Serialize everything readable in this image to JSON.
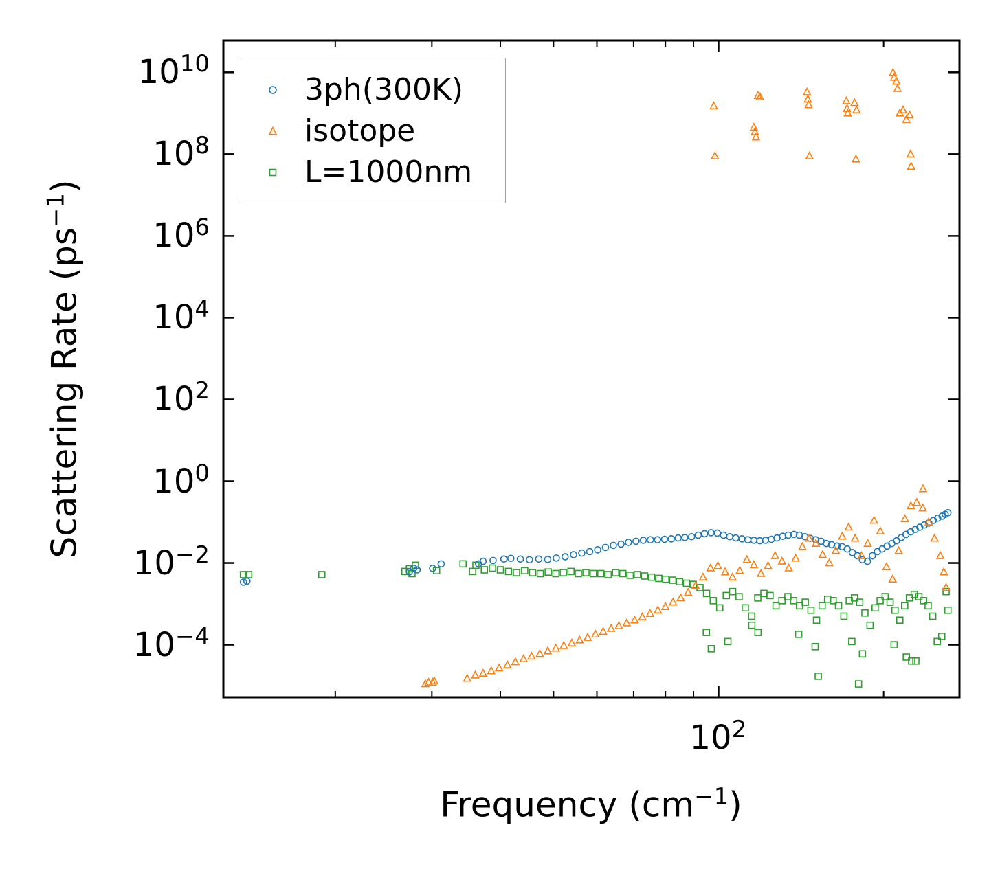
{
  "chart_data": {
    "type": "scatter",
    "title": "",
    "xlabel": "Frequency (cm",
    "xlabel_sup": "−1",
    "xlabel_end": ")",
    "ylabel": "Scattering Rate (ps",
    "ylabel_sup": "−1",
    "ylabel_end": ")",
    "xscale": "log",
    "yscale": "log",
    "xlim": [
      12.5,
      275
    ],
    "ylim": [
      5.2e-06,
      60000000000
    ],
    "x_ticks": [
      {
        "value": 100,
        "base": "10",
        "exp": "2"
      }
    ],
    "y_ticks": [
      {
        "value": 10000000000,
        "base": "10",
        "exp": "10"
      },
      {
        "value": 100000000,
        "base": "10",
        "exp": "8"
      },
      {
        "value": 1000000,
        "base": "10",
        "exp": "6"
      },
      {
        "value": 10000,
        "base": "10",
        "exp": "4"
      },
      {
        "value": 100,
        "base": "10",
        "exp": "2"
      },
      {
        "value": 1,
        "base": "10",
        "exp": "0"
      },
      {
        "value": 0.01,
        "base": "10",
        "exp": "−2"
      },
      {
        "value": 0.0001,
        "base": "10",
        "exp": "−4"
      }
    ],
    "legend_position": "upper-left",
    "series": [
      {
        "name": "3ph(300K)",
        "marker": "circle",
        "color": "#1f77b4",
        "x": [
          13.6,
          13.8,
          27.3,
          27.8,
          28.2,
          30.1,
          31.2,
          36.5,
          37.2,
          38.8,
          40.6,
          41.8,
          43.5,
          45.2,
          47.0,
          48.8,
          50.6,
          52.5,
          54.4,
          56.3,
          58.2,
          60.2,
          62.2,
          64.3,
          66.4,
          68.5,
          70.7,
          72.9,
          75.1,
          77.4,
          79.7,
          82.0,
          84.4,
          86.8,
          89.3,
          91.8,
          94.3,
          96.9,
          99.5,
          102.1,
          104.8,
          107.5,
          110.3,
          113.1,
          116.0,
          118.9,
          121.8,
          124.8,
          127.8,
          130.9,
          134.0,
          137.2,
          140.4,
          143.7,
          147.0,
          150.4,
          153.8,
          157.3,
          160.8,
          164.4,
          168.0,
          171.7,
          175.4,
          179.2,
          183.0,
          186.9,
          190.8,
          194.8,
          198.8,
          202.9,
          207.0,
          211.2,
          215.4,
          219.7,
          224.0,
          228.4,
          232.8,
          237.3,
          241.8,
          246.4,
          251.0,
          255.7,
          259.0,
          262.0
        ],
        "y": [
          0.0034,
          0.0036,
          0.0061,
          0.0074,
          0.0068,
          0.0074,
          0.0095,
          0.0095,
          0.011,
          0.0115,
          0.0125,
          0.013,
          0.0125,
          0.012,
          0.0125,
          0.0122,
          0.0132,
          0.0142,
          0.016,
          0.0175,
          0.019,
          0.021,
          0.024,
          0.027,
          0.029,
          0.032,
          0.034,
          0.036,
          0.037,
          0.037,
          0.038,
          0.039,
          0.041,
          0.042,
          0.044,
          0.048,
          0.052,
          0.055,
          0.054,
          0.048,
          0.044,
          0.041,
          0.039,
          0.037,
          0.036,
          0.035,
          0.036,
          0.038,
          0.041,
          0.045,
          0.048,
          0.05,
          0.048,
          0.044,
          0.04,
          0.037,
          0.034,
          0.03,
          0.028,
          0.026,
          0.025,
          0.022,
          0.018,
          0.015,
          0.012,
          0.011,
          0.015,
          0.019,
          0.022,
          0.026,
          0.03,
          0.035,
          0.042,
          0.05,
          0.058,
          0.066,
          0.075,
          0.085,
          0.095,
          0.11,
          0.125,
          0.14,
          0.155,
          0.17
        ]
      },
      {
        "name": "isotope",
        "marker": "triangle",
        "color": "#ff7f0e",
        "x": [
          29.2,
          29.6,
          30.1,
          30.3,
          34.8,
          36.0,
          37.2,
          38.5,
          39.8,
          41.2,
          42.6,
          44.1,
          45.6,
          47.2,
          48.8,
          50.5,
          52.2,
          54.0,
          55.8,
          57.7,
          59.6,
          61.6,
          63.7,
          65.8,
          68.0,
          70.3,
          72.6,
          75.0,
          77.5,
          80.0,
          82.6,
          85.3,
          88.0,
          90.8,
          93.7,
          96.7,
          99.7,
          102.8,
          106.0,
          109.3,
          112.6,
          116.0,
          119.5,
          123.1,
          126.8,
          130.5,
          134.3,
          138.2,
          142.2,
          146.3,
          150.5,
          154.8,
          159.2,
          163.6,
          168.1,
          172.7,
          177.4,
          182.2,
          187.1,
          192.1,
          197.2,
          202.4,
          207.7,
          213.1,
          218.6,
          224.2,
          229.9,
          235.7,
          241.6,
          247.6,
          253.7,
          257.5,
          260.0,
          236.0,
          98.0,
          98.5,
          116.0,
          116.5,
          117.0,
          118.0,
          119.0,
          145.0,
          145.5,
          146.0,
          146.5,
          171.0,
          171.5,
          172.0,
          177.0,
          178.0,
          178.5,
          208.0,
          209.0,
          211.0,
          212.0,
          214.0,
          217.0,
          220.0,
          223.0,
          224.0,
          224.5
        ],
        "y": [
          1.1e-05,
          1.2e-05,
          1.2e-05,
          1.3e-05,
          1.5e-05,
          1.8e-05,
          2e-05,
          2.3e-05,
          2.7e-05,
          3.2e-05,
          3.8e-05,
          4.5e-05,
          5.2e-05,
          6e-05,
          7e-05,
          8.2e-05,
          9.5e-05,
          0.00011,
          0.00013,
          0.00015,
          0.00018,
          0.00021,
          0.00025,
          0.00029,
          0.00034,
          0.0004,
          0.00048,
          0.00058,
          0.0007,
          0.00085,
          0.0011,
          0.0014,
          0.0019,
          0.0028,
          0.0045,
          0.0075,
          0.0085,
          0.006,
          0.0045,
          0.0065,
          0.012,
          0.009,
          0.0055,
          0.0085,
          0.015,
          0.011,
          0.0075,
          0.013,
          0.025,
          0.04,
          0.03,
          0.016,
          0.01,
          0.02,
          0.045,
          0.075,
          0.04,
          0.015,
          0.03,
          0.11,
          0.06,
          0.008,
          0.004,
          0.02,
          0.12,
          0.25,
          0.3,
          0.22,
          0.1,
          0.04,
          0.015,
          0.006,
          0.0025,
          0.65,
          1500000000,
          90000000,
          450000000,
          350000000,
          260000000,
          2700000000,
          2500000000,
          3300000000,
          2200000000,
          1600000000,
          90000000,
          2000000000,
          1300000000,
          1000000000,
          1800000000,
          75000000,
          1200000000,
          9800000000,
          7500000000,
          6000000000,
          4000000000,
          1000000000,
          1200000000,
          700000000,
          900000000,
          100000000,
          50000000
        ]
      },
      {
        "name": "L=1000nm",
        "marker": "square",
        "color": "#2ca02c",
        "x": [
          13.6,
          13.9,
          18.9,
          26.8,
          27.3,
          27.6,
          28.0,
          30.6,
          34.2,
          35.6,
          36.1,
          37.4,
          38.7,
          40.0,
          41.4,
          42.8,
          44.3,
          45.8,
          47.3,
          48.9,
          50.5,
          52.1,
          53.8,
          55.5,
          57.3,
          59.1,
          61.0,
          62.9,
          64.9,
          66.9,
          69.0,
          71.1,
          73.3,
          75.5,
          77.8,
          80.1,
          82.5,
          84.9,
          87.4,
          89.9,
          92.5,
          95.1,
          97.8,
          100.5,
          103.3,
          106.1,
          109.0,
          111.9,
          114.9,
          117.9,
          121.0,
          124.1,
          127.3,
          130.5,
          133.8,
          137.1,
          140.5,
          143.9,
          147.4,
          150.9,
          154.5,
          158.1,
          161.8,
          165.5,
          169.3,
          173.1,
          177.0,
          180.9,
          184.9,
          188.9,
          193.0,
          197.1,
          201.3,
          205.5,
          209.8,
          214.1,
          218.5,
          222.9,
          227.4,
          231.9,
          236.5,
          241.1,
          245.8,
          250.5,
          255.3,
          260.0,
          262.0,
          95.0,
          97.0,
          104.0,
          115.0,
          118.0,
          140.0,
          150.0,
          152.0,
          175.0,
          180.0,
          183.0,
          209.0,
          220.0,
          225.0,
          229.0
        ],
        "y": [
          0.0052,
          0.0052,
          0.0052,
          0.0062,
          0.0072,
          0.0055,
          0.0088,
          0.0065,
          0.0095,
          0.0062,
          0.0088,
          0.0068,
          0.0075,
          0.0068,
          0.0062,
          0.0058,
          0.0065,
          0.0058,
          0.0055,
          0.006,
          0.0055,
          0.0058,
          0.0062,
          0.0055,
          0.0058,
          0.0055,
          0.0055,
          0.0052,
          0.0058,
          0.0055,
          0.005,
          0.0052,
          0.0048,
          0.0045,
          0.0042,
          0.004,
          0.0038,
          0.0035,
          0.0032,
          0.003,
          0.0025,
          0.0018,
          0.0012,
          0.0008,
          0.0016,
          0.002,
          0.0015,
          0.0008,
          0.0005,
          0.0014,
          0.0018,
          0.0016,
          0.0009,
          0.0012,
          0.0015,
          0.0012,
          0.0009,
          0.0011,
          0.0007,
          0.0004,
          0.0009,
          0.0013,
          0.0012,
          0.0009,
          0.0005,
          0.0012,
          0.0014,
          0.0011,
          0.0006,
          0.0003,
          0.0008,
          0.0012,
          0.0015,
          0.0011,
          0.0007,
          0.0004,
          0.0009,
          0.0014,
          0.0017,
          0.0015,
          0.0012,
          0.0009,
          0.0005,
          0.00012,
          0.00016,
          0.002,
          0.0007,
          0.0002,
          8e-05,
          0.00012,
          0.0003,
          0.0002,
          0.00018,
          9e-05,
          1.7e-05,
          0.00012,
          1.1e-05,
          6e-05,
          0.0001,
          5e-05,
          4e-05,
          4e-05
        ]
      }
    ]
  }
}
